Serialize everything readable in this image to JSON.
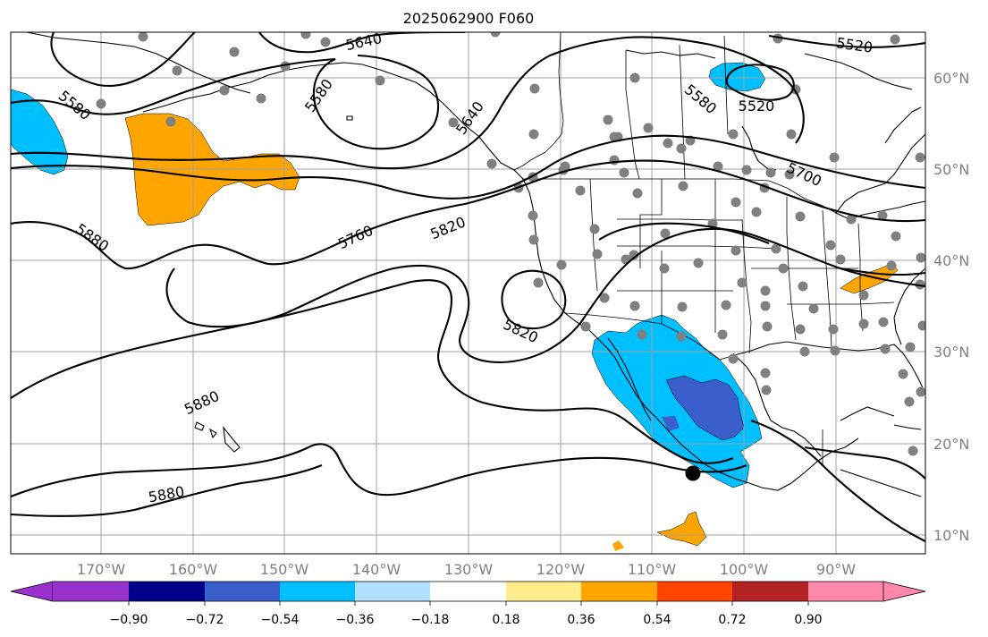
{
  "title": "2025062900 F060",
  "lon_labels": [
    "170°W",
    "160°W",
    "150°W",
    "140°W",
    "130°W",
    "120°W",
    "110°W",
    "100°W",
    "90°W"
  ],
  "lat_labels": [
    "60°N",
    "50°N",
    "40°N",
    "30°N",
    "20°N",
    "10°N"
  ],
  "contour_labels": [
    "5640",
    "5520",
    "5580",
    "5580",
    "5640",
    "5580",
    "5520",
    "5700",
    "5880",
    "5760",
    "5820",
    "5820",
    "5880",
    "5880"
  ],
  "colorbar": {
    "ticks": [
      "−0.90",
      "−0.72",
      "−0.54",
      "−0.36",
      "−0.18",
      "0.18",
      "0.36",
      "0.54",
      "0.72",
      "0.90"
    ],
    "colors": [
      "#9932cc",
      "#00008b",
      "#3a5fcd",
      "#00bfff",
      "#b0e2ff",
      "#ffffff",
      "#ffec8b",
      "#ffa500",
      "#ff4500",
      "#b22222",
      "#ff88aa"
    ]
  },
  "colors": {
    "negative_strong": "#3a5fcd",
    "negative": "#00bfff",
    "positive": "#ffa500",
    "stations": "#808080",
    "marker": "#000000"
  }
}
